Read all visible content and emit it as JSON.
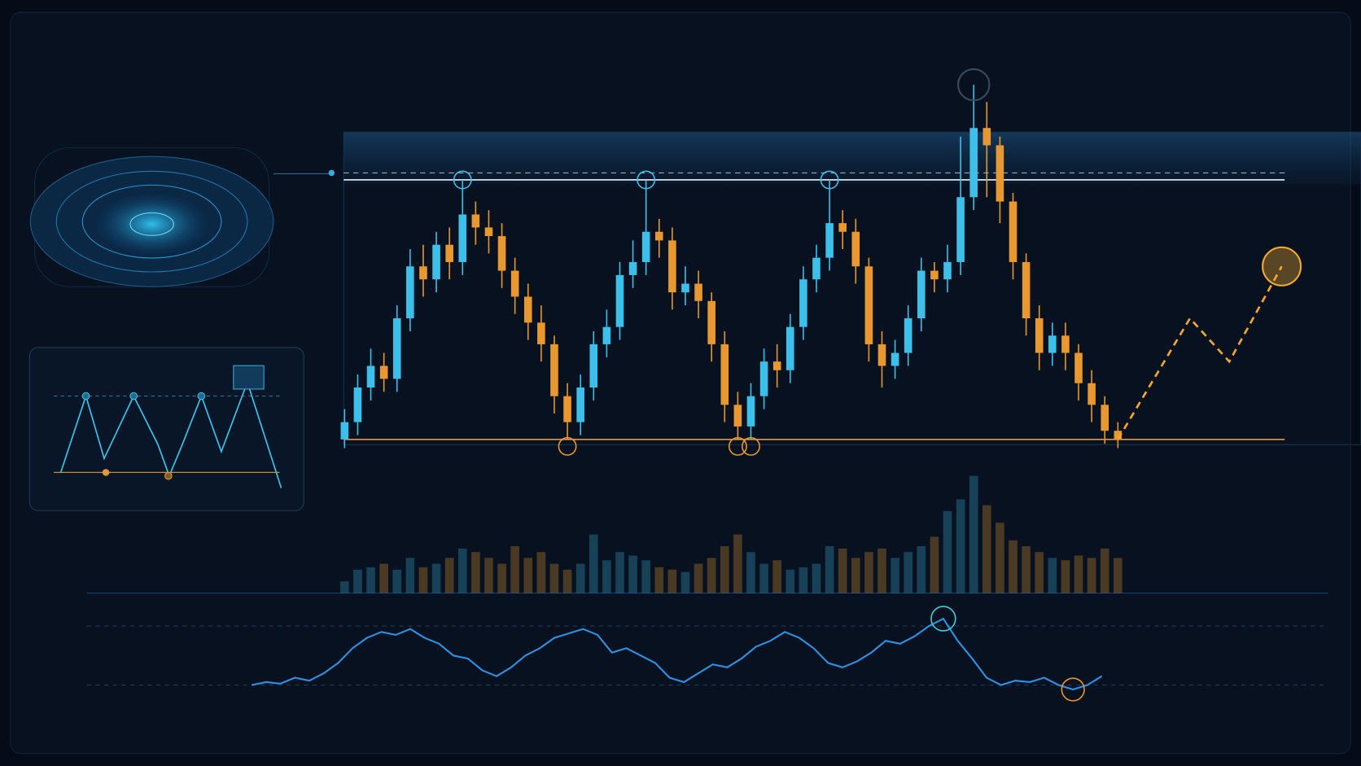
{
  "chart_data": {
    "type": "candlestick",
    "open": [
      100,
      104,
      112,
      117,
      114,
      128,
      140,
      137,
      145,
      141,
      152,
      149,
      147,
      139,
      133,
      127,
      122,
      110,
      104,
      112,
      122,
      126,
      138,
      141,
      148,
      146,
      134,
      136,
      132,
      122,
      108,
      103,
      110,
      118,
      116,
      126,
      137,
      142,
      150,
      148,
      140,
      122,
      117,
      120,
      128,
      139,
      137,
      141,
      156,
      172,
      168,
      155,
      141,
      128,
      120,
      124,
      120,
      113,
      108,
      102
    ],
    "high": [
      107,
      115,
      121,
      120,
      131,
      144,
      145,
      148,
      149,
      160,
      155,
      153,
      150,
      142,
      136,
      131,
      124,
      113,
      115,
      125,
      130,
      141,
      146,
      160,
      151,
      149,
      140,
      139,
      134,
      125,
      111,
      113,
      121,
      122,
      129,
      140,
      145,
      160,
      153,
      151,
      142,
      125,
      123,
      131,
      142,
      141,
      145,
      170,
      182,
      178,
      170,
      157,
      143,
      131,
      127,
      127,
      122,
      116,
      110,
      104
    ],
    "low": [
      98,
      101,
      109,
      111,
      111,
      125,
      133,
      134,
      137,
      138,
      145,
      143,
      135,
      129,
      123,
      118,
      106,
      100,
      101,
      109,
      119,
      123,
      135,
      138,
      142,
      130,
      131,
      128,
      118,
      104,
      100,
      100,
      107,
      112,
      113,
      123,
      134,
      139,
      144,
      136,
      118,
      112,
      114,
      117,
      125,
      134,
      134,
      138,
      153,
      156,
      150,
      137,
      124,
      116,
      117,
      116,
      109,
      104,
      99,
      98
    ],
    "close": [
      104,
      112,
      117,
      114,
      128,
      140,
      137,
      145,
      141,
      152,
      149,
      147,
      139,
      133,
      127,
      122,
      110,
      104,
      112,
      122,
      126,
      138,
      141,
      148,
      146,
      134,
      136,
      132,
      122,
      108,
      103,
      110,
      118,
      116,
      126,
      137,
      142,
      150,
      148,
      140,
      122,
      117,
      120,
      128,
      139,
      137,
      141,
      156,
      172,
      168,
      155,
      141,
      128,
      120,
      124,
      120,
      113,
      108,
      102,
      100
    ],
    "up_color": "#3cc0ea",
    "down_color": "#e8982f",
    "ylim": [
      70,
      190
    ],
    "resistance": 160,
    "support": 100,
    "projection": {
      "x": [
        59,
        64.5,
        67.5,
        71.5
      ],
      "values": [
        100,
        128,
        118,
        140
      ],
      "color": "#f0a830"
    },
    "volume": {
      "values": [
        10,
        20,
        22,
        25,
        20,
        30,
        22,
        25,
        30,
        38,
        35,
        30,
        25,
        40,
        30,
        35,
        25,
        20,
        25,
        50,
        28,
        35,
        32,
        28,
        22,
        20,
        18,
        25,
        30,
        40,
        50,
        35,
        25,
        28,
        20,
        22,
        25,
        40,
        38,
        30,
        35,
        38,
        30,
        35,
        40,
        48,
        70,
        80,
        100,
        75,
        60,
        45,
        40,
        35,
        30,
        28,
        32,
        30,
        38,
        30
      ],
      "ylim": [
        0,
        100
      ]
    },
    "oscillator": {
      "values": [
        30,
        32,
        31,
        35,
        33,
        38,
        45,
        55,
        62,
        66,
        64,
        68,
        62,
        58,
        50,
        48,
        40,
        36,
        42,
        50,
        55,
        62,
        65,
        68,
        64,
        52,
        55,
        50,
        45,
        35,
        32,
        38,
        44,
        42,
        48,
        56,
        60,
        66,
        62,
        55,
        45,
        42,
        46,
        52,
        60,
        58,
        63,
        70,
        75,
        60,
        48,
        35,
        30,
        33,
        32,
        35,
        30,
        27,
        30,
        36
      ],
      "ylim": [
        0,
        100
      ],
      "levels": [
        30,
        70
      ],
      "color": "#2f8fe0"
    }
  }
}
